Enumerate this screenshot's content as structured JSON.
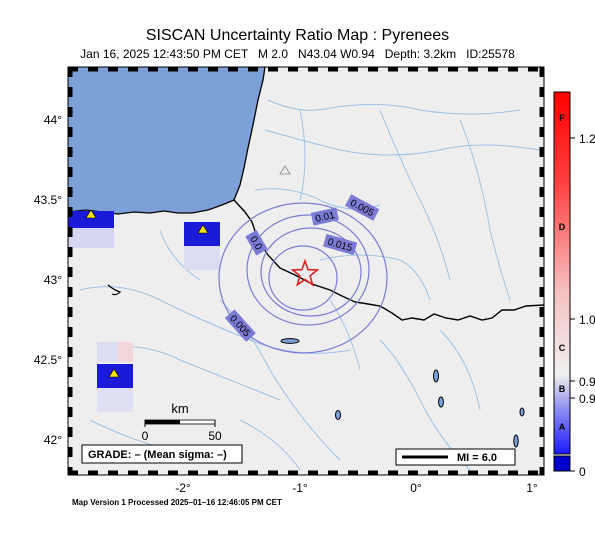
{
  "header": {
    "title": "SISCAN Uncertainty Ratio Map : Pyrenees",
    "subtitle": "Jan 16, 2025 12:43:50 PM CET   M 2.0   N43.04 W0.94   Depth: 3.2km   ID:25578"
  },
  "map": {
    "lon_ticks": [
      "-2°",
      "-1°",
      "0°",
      "1°"
    ],
    "lat_ticks": [
      "44°",
      "43.5°",
      "43°",
      "42.5°",
      "42°"
    ],
    "contour_labels": [
      "0.005",
      "0.01",
      "0.015",
      "0.0",
      "0.005"
    ],
    "scale_bar": {
      "unit": "km",
      "ticks": [
        "0",
        "50"
      ]
    },
    "grade_text": "GRADE: – (Mean sigma: –)",
    "mi_legend": "MI = 6.0",
    "colors": {
      "sea": "#7da0d9",
      "land": "#eeeeee",
      "border": "#000000",
      "rivers": "#9ec3e4",
      "contour": "#7b7bd6",
      "station": "#1010d0",
      "station_marker": "#f5e400",
      "epicenter": "#e02020"
    }
  },
  "colorbar": {
    "grades": [
      "F",
      "D",
      "C",
      "B",
      "A"
    ],
    "values": [
      "1.2",
      "1.0",
      "0.9",
      "0.9",
      "0"
    ]
  },
  "footer": {
    "text": "Map Version 1 Processed 2025–01–16 12:46:05 PM CET"
  }
}
